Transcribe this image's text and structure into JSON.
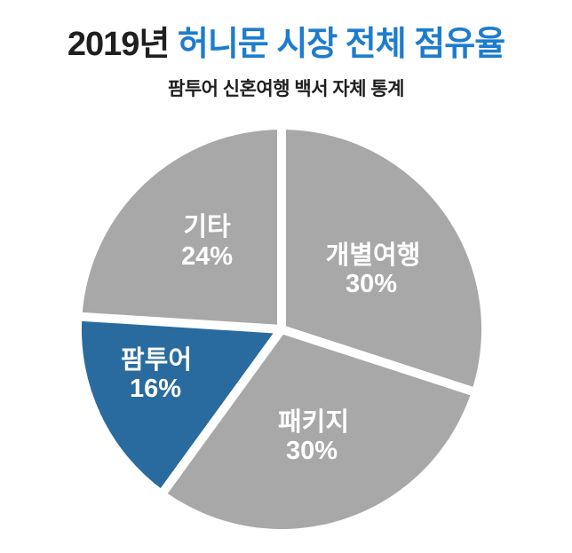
{
  "title": {
    "year": "2019년 ",
    "highlight": "허니문 시장 전체 점유율"
  },
  "subtitle": "팜투어 신혼여행 백서 자체 통계",
  "colors": {
    "title_text": "#1f1f1f",
    "title_accent": "#1e7ccd",
    "slice_gray": "#a8a8a8",
    "slice_blue": "#296b9f",
    "slice_label": "#ffffff",
    "background": "#ffffff"
  },
  "chart_data": {
    "type": "pie",
    "title": "2019년 허니문 시장 전체 점유율",
    "subtitle": "팜투어 신혼여행 백서 자체 통계",
    "start_angle_deg": 0,
    "direction": "clockwise",
    "total": 100,
    "gap_color": "#ffffff",
    "label_color": "#ffffff",
    "legend": "none",
    "slices": [
      {
        "label": "개별여행",
        "value": 30,
        "value_text": "30%",
        "color": "#a8a8a8"
      },
      {
        "label": "패키지",
        "value": 30,
        "value_text": "30%",
        "color": "#a8a8a8"
      },
      {
        "label": "팜투어",
        "value": 16,
        "value_text": "16%",
        "color": "#296b9f"
      },
      {
        "label": "기타",
        "value": 24,
        "value_text": "24%",
        "color": "#a8a8a8"
      }
    ]
  }
}
